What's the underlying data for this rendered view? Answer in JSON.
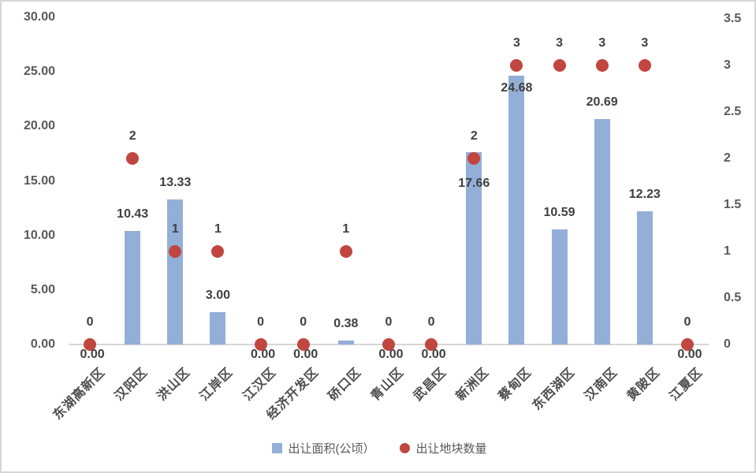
{
  "chart_data": {
    "type": "combo-bar-scatter",
    "title": "",
    "categories": [
      "东湖高新区",
      "汉阳区",
      "洪山区",
      "江岸区",
      "江汉区",
      "经济开发区",
      "硚口区",
      "青山区",
      "武昌区",
      "新洲区",
      "蔡甸区",
      "东西湖区",
      "汉南区",
      "黄陂区",
      "江夏区"
    ],
    "series": [
      {
        "name": "出让面积(公顷）",
        "type": "bar",
        "axis": "left",
        "color": "#93AFD7",
        "values": [
          0.0,
          10.43,
          13.33,
          3.0,
          0.0,
          0.0,
          0.38,
          0.0,
          0.0,
          17.66,
          24.68,
          10.59,
          20.69,
          12.23,
          0.0
        ],
        "data_labels": [
          "0.00",
          "10.43",
          "13.33",
          "3.00",
          "0.00",
          "0.00",
          "0.38",
          "0.00",
          "0.00",
          "17.66",
          "24.68",
          "10.59",
          "20.69",
          "12.23",
          "0.00"
        ]
      },
      {
        "name": "出让地块数量",
        "type": "scatter",
        "axis": "right",
        "color": "#C1463F",
        "values": [
          0,
          2,
          1,
          1,
          0,
          0,
          1,
          0,
          0,
          2,
          3,
          3,
          3,
          3,
          0
        ],
        "data_labels": [
          "0",
          "2",
          "1",
          "1",
          "0",
          "0",
          "1",
          "0",
          "0",
          "2",
          "3",
          "3",
          "3",
          "3",
          "0"
        ]
      }
    ],
    "left_axis": {
      "min": 0,
      "max": 30,
      "step": 5,
      "tick_labels": [
        "0.00",
        "5.00",
        "10.00",
        "15.00",
        "20.00",
        "25.00",
        "30.00"
      ]
    },
    "right_axis": {
      "min": 0,
      "max": 3.5,
      "step": 0.5,
      "tick_labels": [
        "0",
        "0.5",
        "1",
        "1.5",
        "2",
        "2.5",
        "3",
        "3.5"
      ]
    },
    "grid": false,
    "legend_position": "bottom"
  },
  "legend": {
    "items": [
      {
        "label": "出让面积(公顷）",
        "swatch": "square",
        "color": "#93AFD7"
      },
      {
        "label": "出让地块数量",
        "swatch": "circle",
        "color": "#C1463F"
      }
    ]
  },
  "colors": {
    "bar": "#93AFD7",
    "dot": "#C1463F",
    "axis_line": "#D6D6D6",
    "tick_text": "#595959",
    "label_text": "#3F3F3F"
  }
}
